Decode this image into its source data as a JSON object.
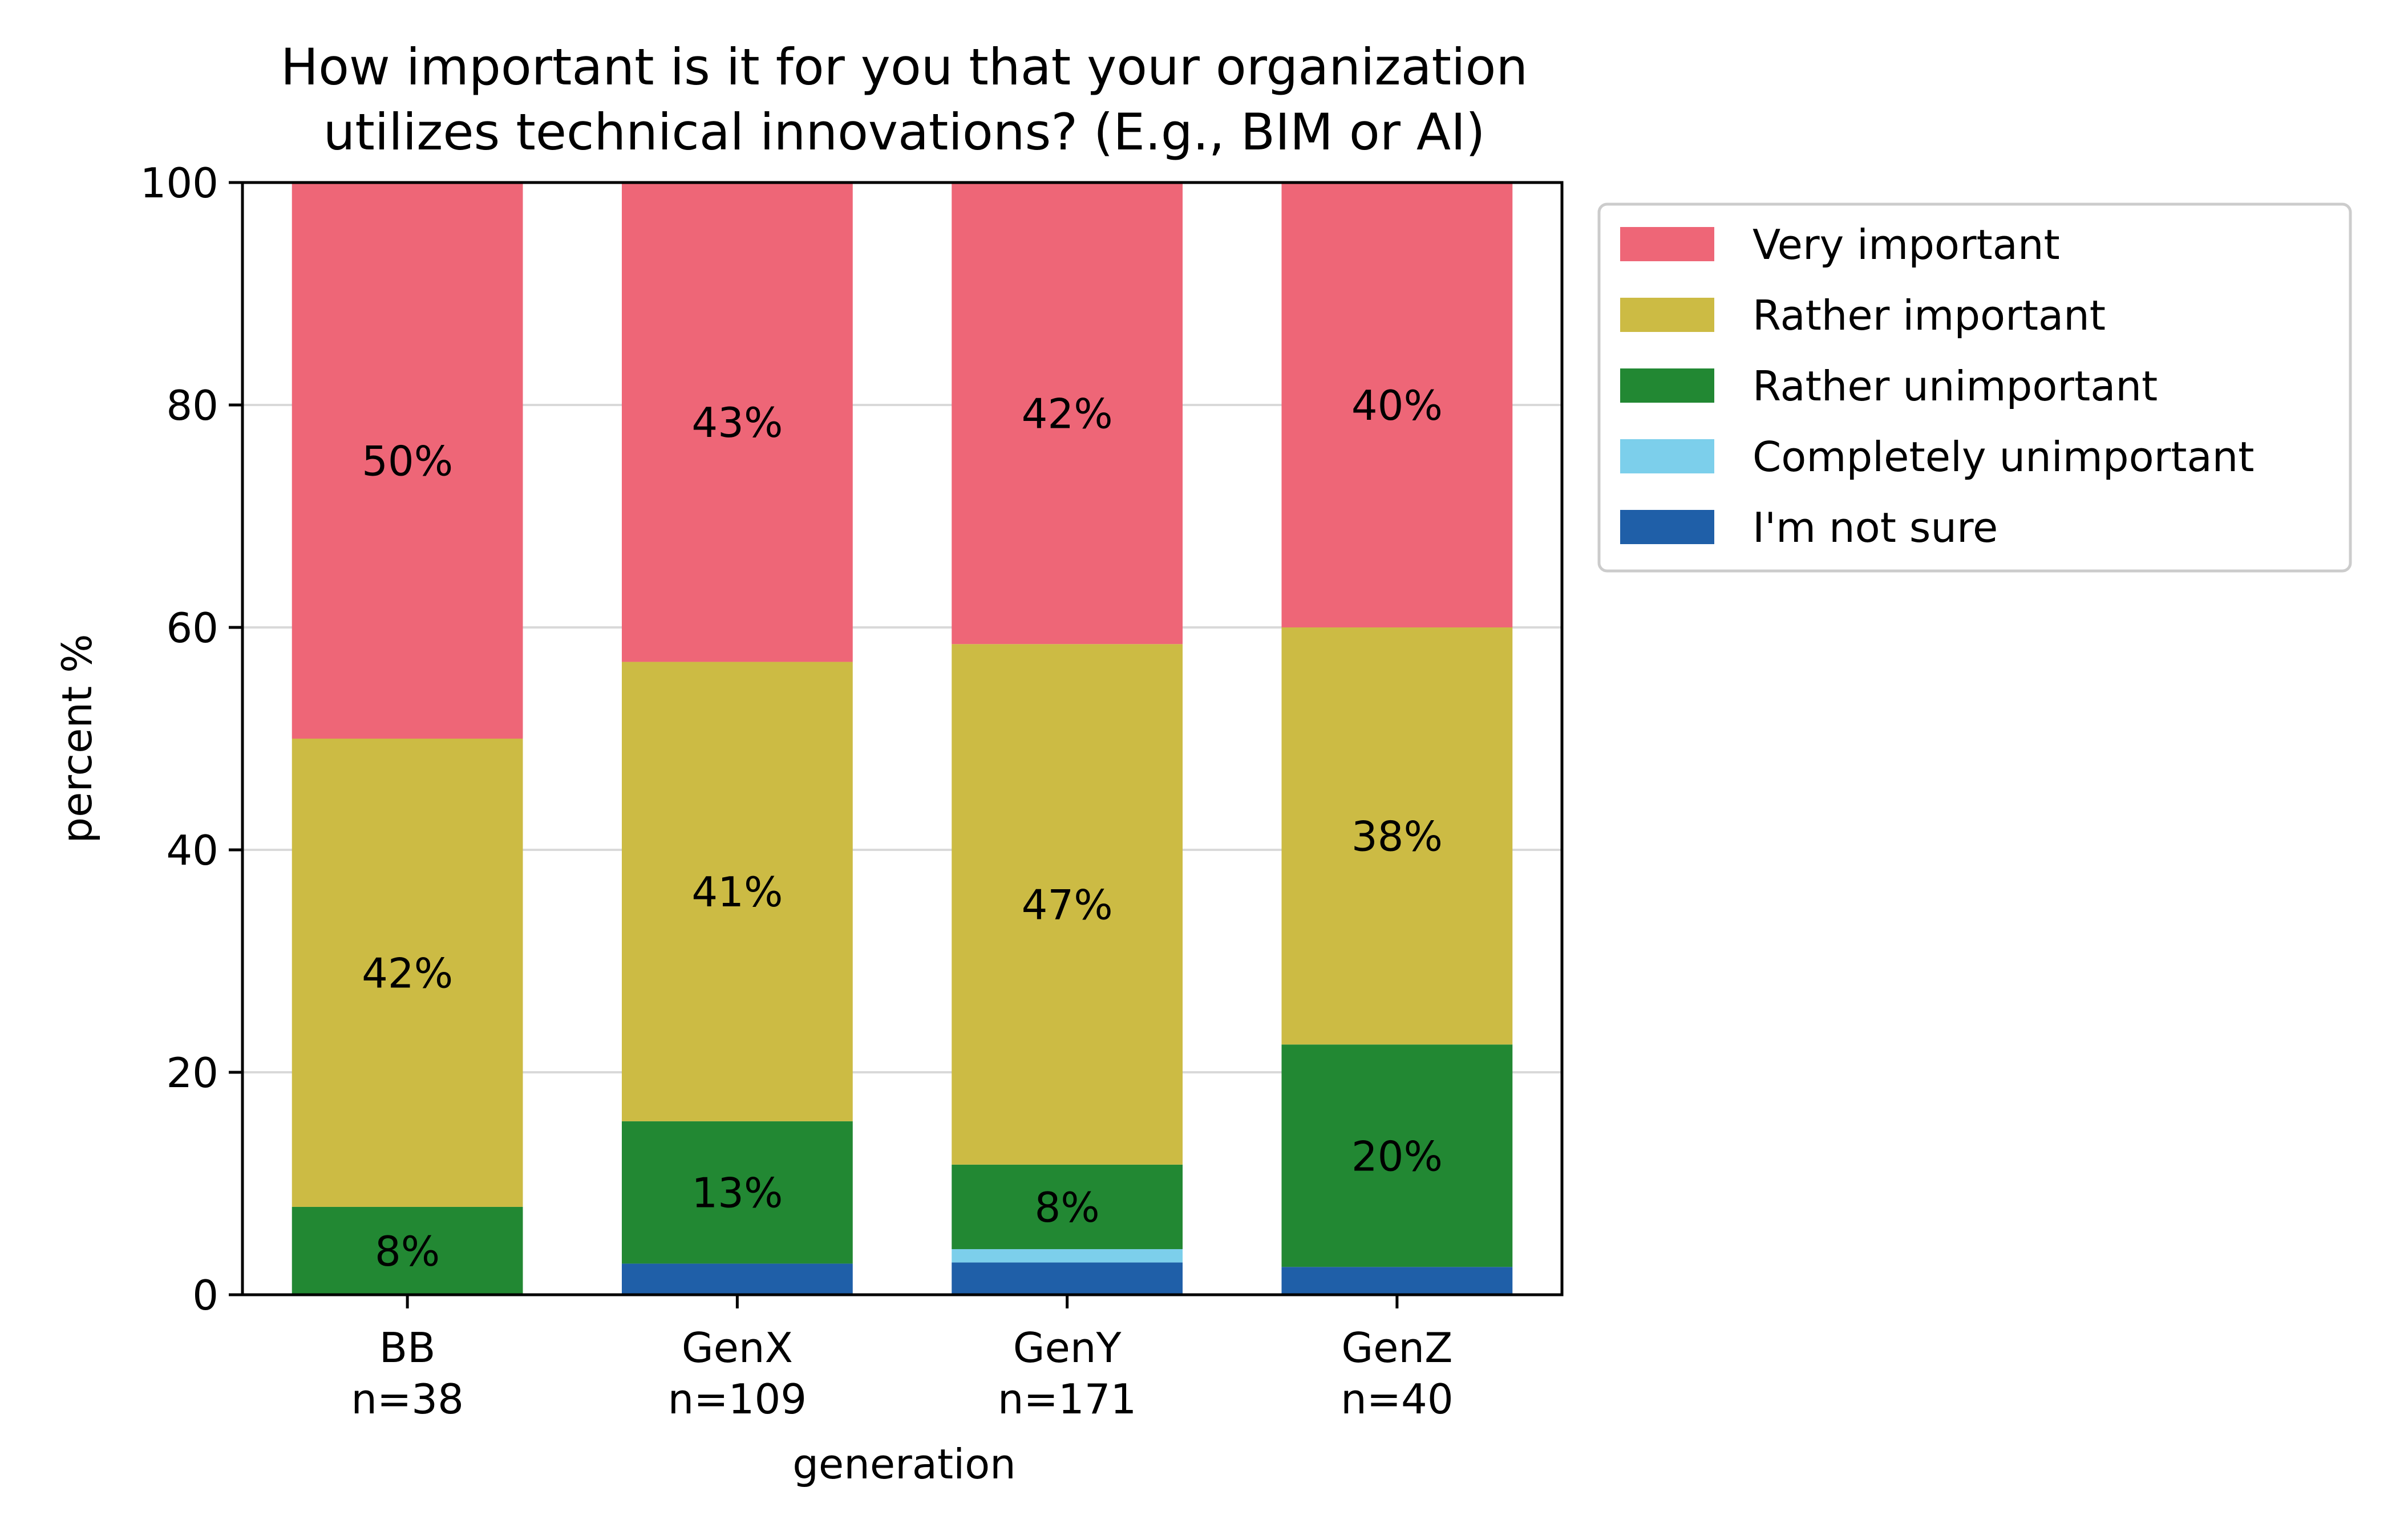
{
  "chart_data": {
    "type": "bar",
    "stacked": true,
    "title_lines": [
      "How important is it for you that your organization",
      "utilizes technical innovations? (E.g., BIM or AI)"
    ],
    "xlabel": "generation",
    "ylabel": "percent %",
    "ylim": [
      0,
      100
    ],
    "yticks": [
      0,
      20,
      40,
      60,
      80,
      100
    ],
    "grid": "horizontal",
    "legend_position": "outside-right-top",
    "categories": [
      "BB",
      "GenX",
      "GenY",
      "GenZ"
    ],
    "category_sublabels": [
      "n=38",
      "n=109",
      "n=171",
      "n=40"
    ],
    "series": [
      {
        "name": "I'm not sure",
        "color": "#1f5fa8",
        "values": [
          0,
          2.8,
          2.9,
          2.5
        ],
        "labels": [
          "",
          "",
          "",
          ""
        ]
      },
      {
        "name": "Completely unimportant",
        "color": "#7ccfeb",
        "values": [
          0,
          0,
          1.2,
          0
        ],
        "labels": [
          "",
          "",
          "",
          ""
        ]
      },
      {
        "name": "Rather unimportant",
        "color": "#228833",
        "values": [
          7.9,
          12.8,
          7.6,
          20.0
        ],
        "labels": [
          "8%",
          "13%",
          "8%",
          "20%"
        ]
      },
      {
        "name": "Rather important",
        "color": "#ccbb44",
        "values": [
          42.1,
          41.3,
          46.8,
          37.5
        ],
        "labels": [
          "42%",
          "41%",
          "47%",
          "38%"
        ]
      },
      {
        "name": "Very important",
        "color": "#ee6677",
        "values": [
          50.0,
          43.1,
          41.5,
          40.0
        ],
        "labels": [
          "50%",
          "43%",
          "42%",
          "40%"
        ]
      }
    ],
    "legend_order": [
      "Very important",
      "Rather important",
      "Rather unimportant",
      "Completely unimportant",
      "I'm not sure"
    ]
  }
}
